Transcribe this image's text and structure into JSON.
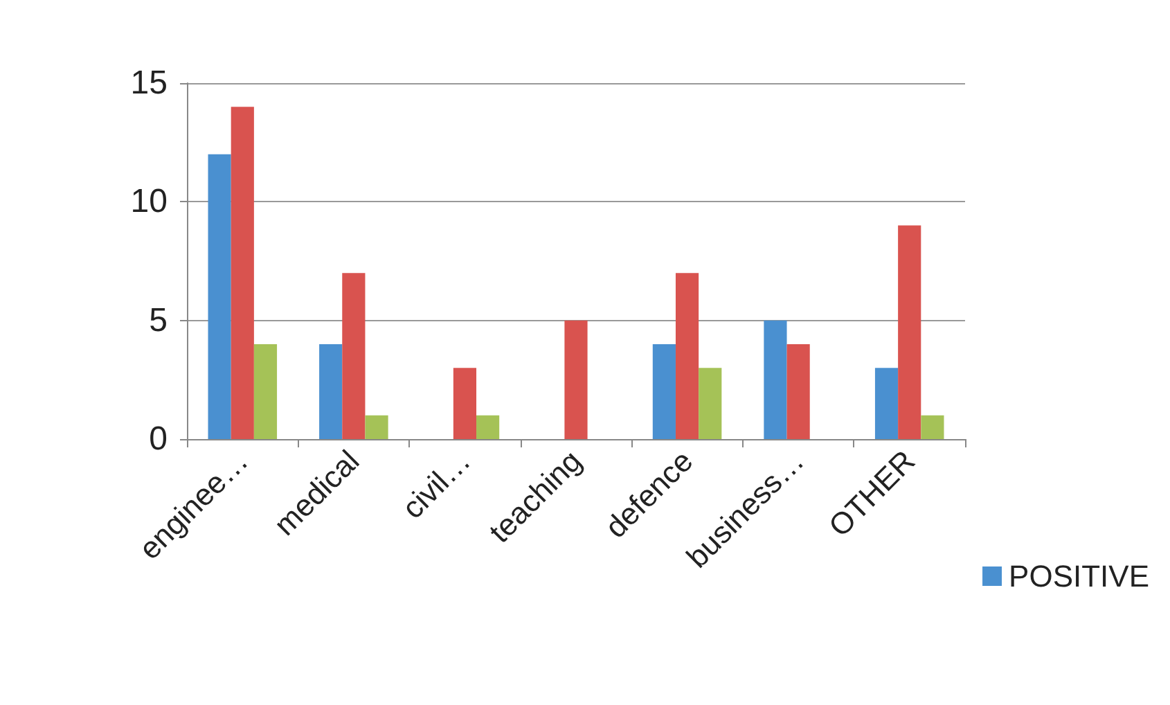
{
  "chart_data": {
    "type": "bar",
    "categories": [
      "enginee…",
      "medical",
      "civil…",
      "teaching",
      "defence",
      "business…",
      "OTHER"
    ],
    "series": [
      {
        "name": "POSITIVE",
        "color": "#4a90d0",
        "values": [
          12,
          4,
          null,
          null,
          4,
          5,
          3
        ]
      },
      {
        "color": "#d9534f",
        "values": [
          14,
          7,
          3,
          5,
          7,
          4,
          9
        ]
      },
      {
        "color": "#a5c257",
        "values": [
          4,
          1,
          1,
          null,
          3,
          null,
          1
        ]
      }
    ],
    "ylim": [
      0,
      15
    ],
    "yticks": [
      0,
      5,
      10,
      15
    ],
    "grid": "y",
    "legend": "right"
  }
}
